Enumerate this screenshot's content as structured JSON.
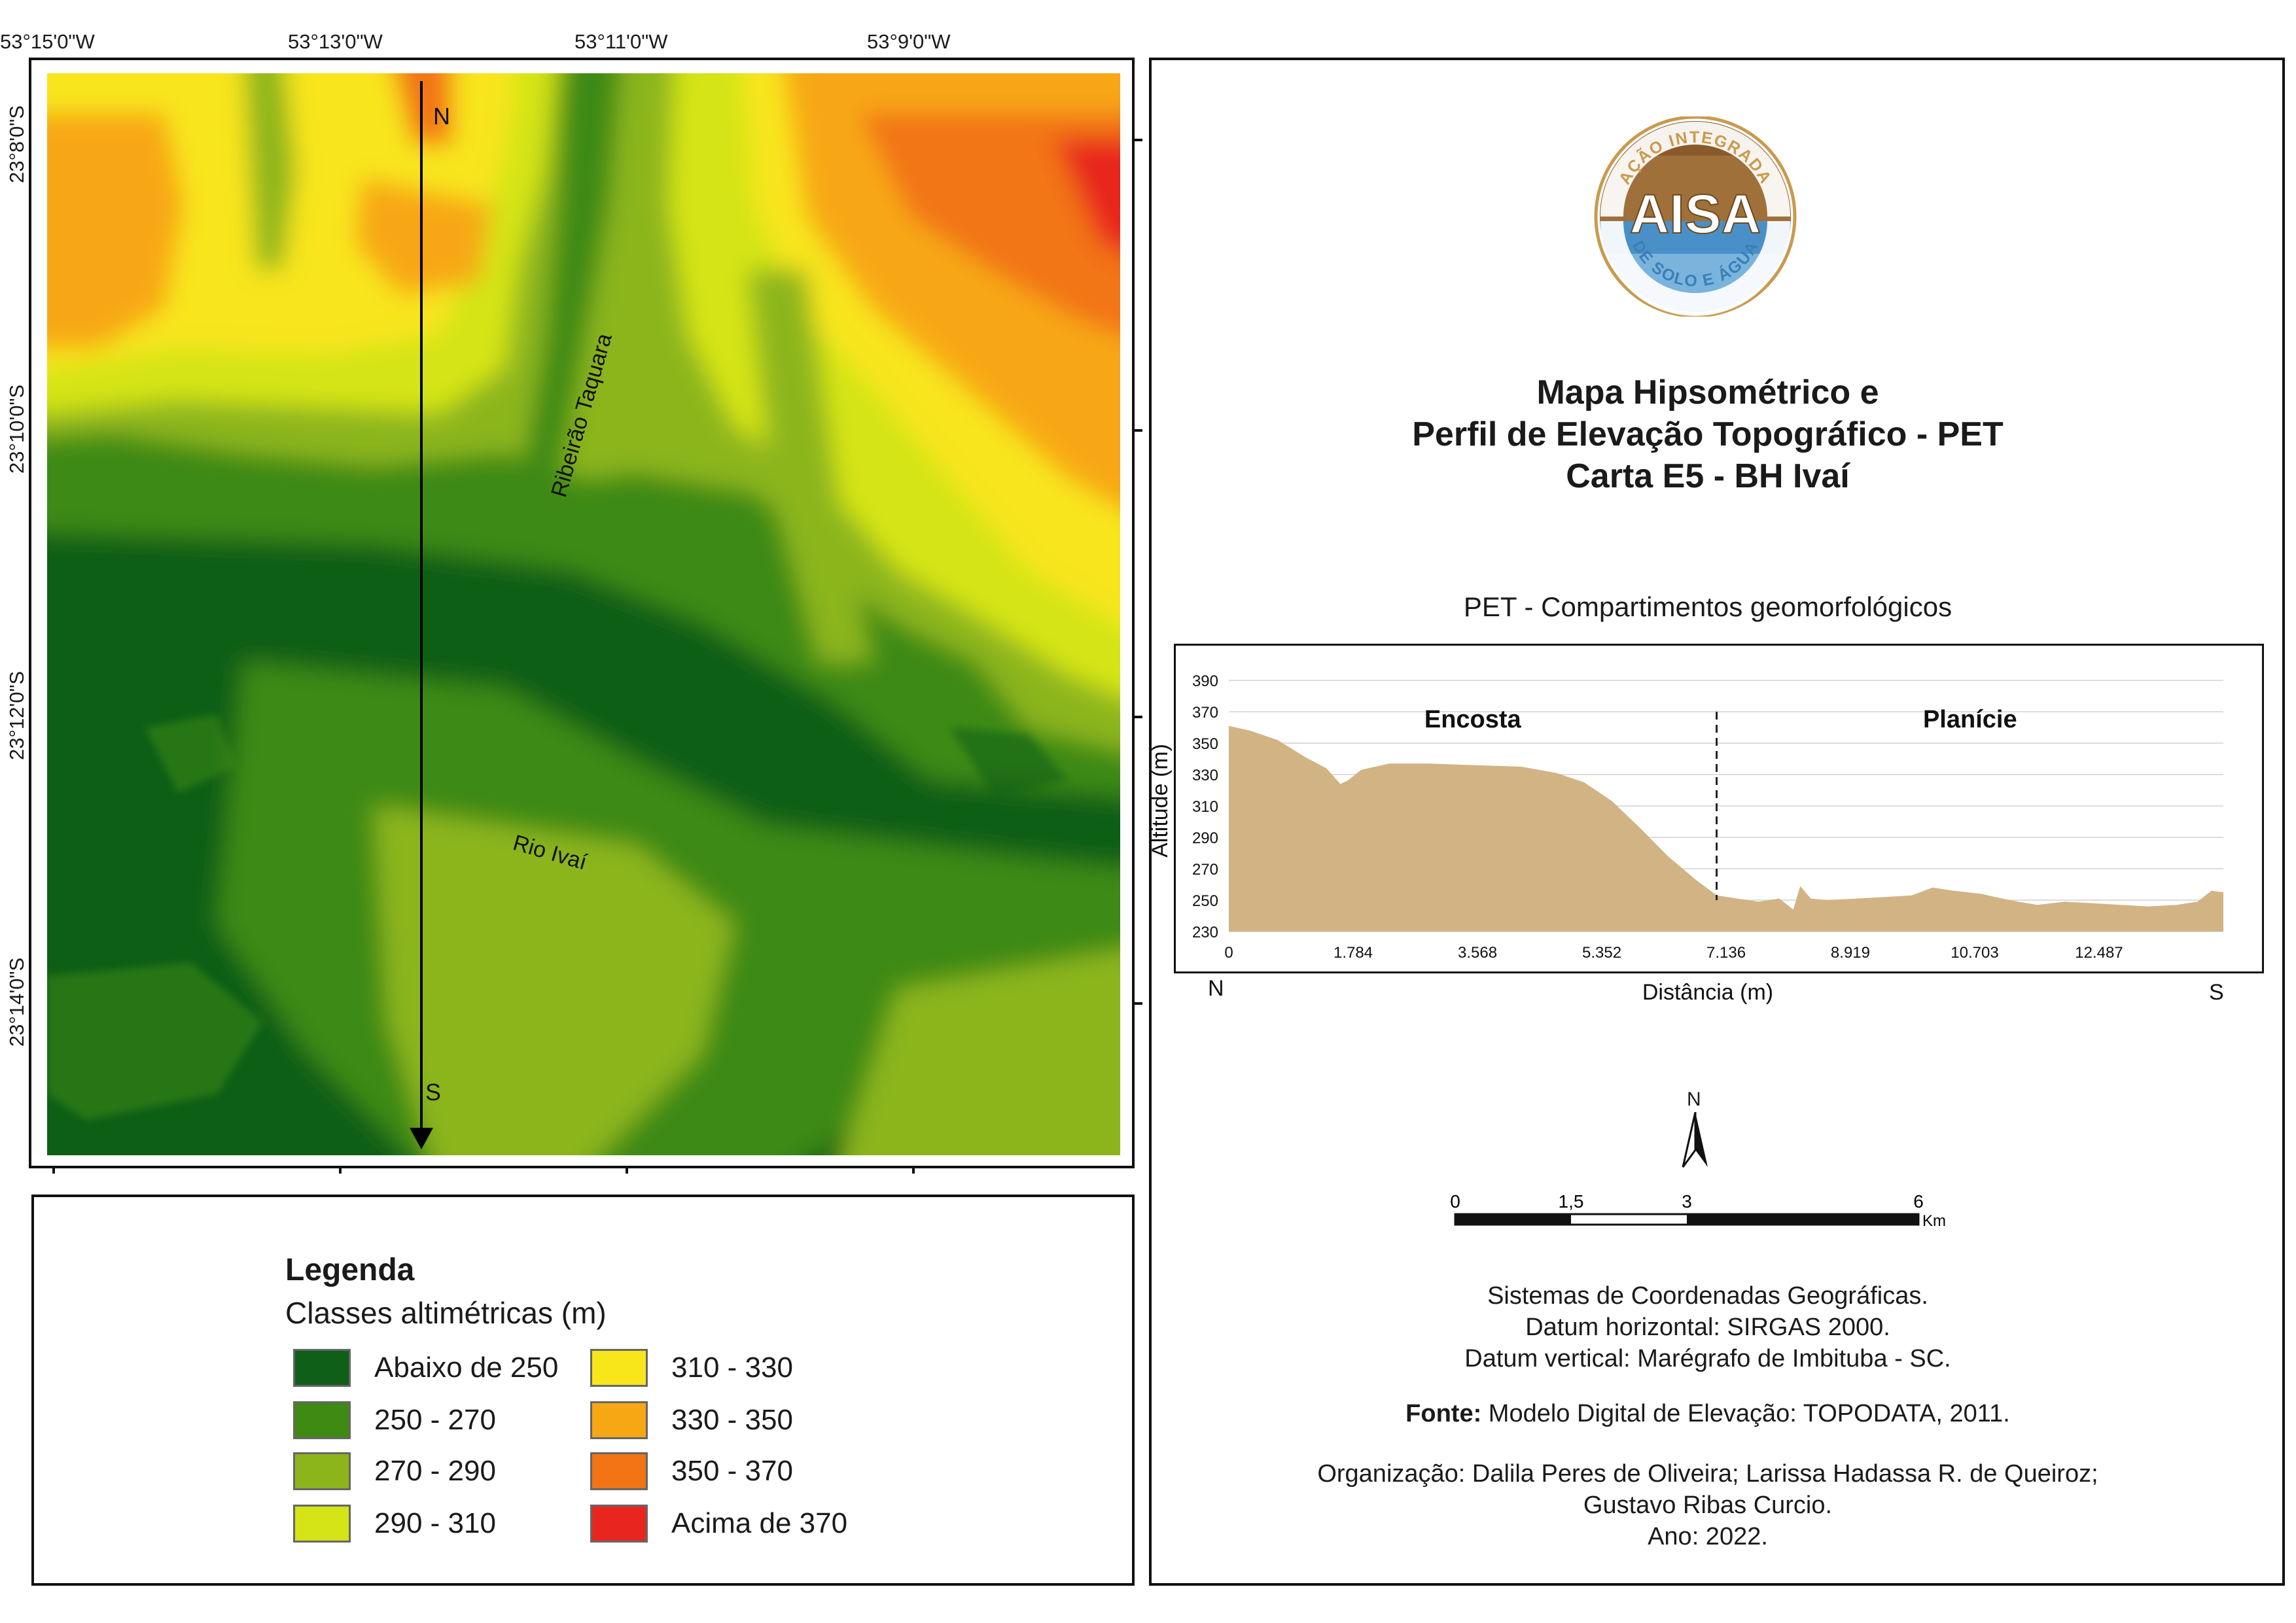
{
  "map": {
    "lon_labels": [
      "53°15'0\"W",
      "53°13'0\"W",
      "53°11'0\"W",
      "53°9'0\"W"
    ],
    "lat_labels": [
      "23°8'0\"S",
      "23°10'0\"S",
      "23°12'0\"S",
      "23°14'0\"S"
    ],
    "profile_start": "N",
    "profile_end": "S",
    "river_labels": [
      "Ribeirão Taquara",
      "Rio Ivaí"
    ],
    "class_colors": [
      "#0f5f18",
      "#3e8a12",
      "#8cb51c",
      "#d4e417",
      "#f8e51a",
      "#f7a714",
      "#f27415",
      "#e8261f"
    ]
  },
  "legend": {
    "title": "Legenda",
    "subtitle": "Classes altimétricas (m)",
    "items": [
      {
        "label": "Abaixo de 250",
        "color": "#0f5f18"
      },
      {
        "label": "250 - 270",
        "color": "#3e8a12"
      },
      {
        "label": "270 - 290",
        "color": "#8cb51c"
      },
      {
        "label": "290 - 310",
        "color": "#d4e417"
      },
      {
        "label": "310 - 330",
        "color": "#f8e51a"
      },
      {
        "label": "330 - 350",
        "color": "#f7a714"
      },
      {
        "label": "350 - 370",
        "color": "#f27415"
      },
      {
        "label": "Acima de 370",
        "color": "#e8261f"
      }
    ]
  },
  "logo": {
    "top_text": "AÇÃO INTEGRADA",
    "main_text": "AISA",
    "bottom_text": "DE SOLO E ÁGUA"
  },
  "title": {
    "line1": "Mapa Hipsométrico e",
    "line2": "Perfil de Elevação Topográfico - PET",
    "line3": "Carta E5 - BH Ivaí"
  },
  "chart_data": {
    "type": "area",
    "title": "PET - Compartimentos geomorfológicos",
    "xlabel": "Distância (m)",
    "ylabel": "Altitude (m)",
    "ylim": [
      230,
      390
    ],
    "xlim": [
      0,
      14271
    ],
    "y_ticks": [
      230,
      250,
      270,
      290,
      310,
      330,
      350,
      370,
      390
    ],
    "x_ticks": [
      0,
      1784,
      3568,
      5352,
      7136,
      8919,
      10703,
      12487
    ],
    "x_tick_labels": [
      "0",
      "1.784",
      "3.568",
      "5.352",
      "7.136",
      "8.919",
      "10.703",
      "12.487"
    ],
    "start_label": "N",
    "end_label": "S",
    "fill_color": "#d2b384",
    "divider_x": 7000,
    "regions": [
      "Encosta",
      "Planície"
    ],
    "x": [
      0,
      300,
      700,
      1100,
      1400,
      1600,
      1700,
      1900,
      2300,
      2900,
      3500,
      4200,
      4700,
      5100,
      5500,
      5900,
      6300,
      6700,
      7000,
      7300,
      7600,
      7900,
      8100,
      8200,
      8350,
      8600,
      9000,
      9400,
      9800,
      10100,
      10400,
      10800,
      11200,
      11600,
      12000,
      12400,
      12800,
      13200,
      13600,
      13900,
      14100,
      14271
    ],
    "y": [
      361,
      358,
      352,
      341,
      334,
      324,
      326,
      333,
      337,
      337,
      336,
      335,
      331,
      325,
      313,
      296,
      278,
      263,
      253,
      251,
      249,
      251,
      244,
      259,
      251,
      250,
      251,
      252,
      253,
      258,
      256,
      254,
      250,
      247,
      249,
      248,
      247,
      246,
      247,
      249,
      256,
      255
    ]
  },
  "scale_bar": {
    "labels": [
      "0",
      "1,5",
      "3",
      "6"
    ],
    "unit": "Km",
    "north": "N"
  },
  "info": {
    "line1": "Sistemas de Coordenadas Geográficas.",
    "line2": "Datum horizontal: SIRGAS 2000.",
    "line3": "Datum vertical: Marégrafo de Imbituba - SC.",
    "source_label": "Fonte:",
    "source_text": " Modelo Digital de Elevação: TOPODATA, 2011.",
    "org1": "Organização: Dalila Peres de Oliveira; Larissa Hadassa R. de Queiroz;",
    "org2": "Gustavo Ribas Curcio.",
    "year": "Ano: 2022."
  }
}
